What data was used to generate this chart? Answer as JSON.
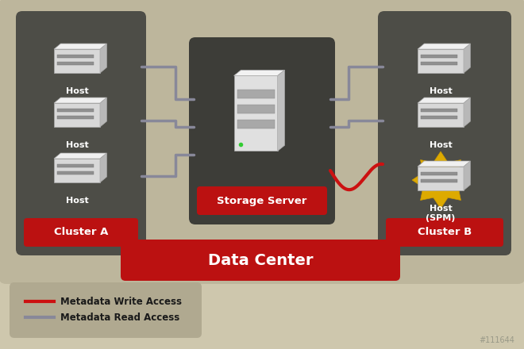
{
  "bg_color": "#cec7ad",
  "dc_area_color": "#bdb69c",
  "cluster_bg": "#4d4d47",
  "storage_bg": "#3d3d38",
  "label_red": "#bb1111",
  "read_color": "#888899",
  "write_color": "#cc1111",
  "legend_bg": "#b0a990",
  "outer_bg": "#d0c9af",
  "title": "Data Center",
  "cluster_a_label": "Cluster A",
  "cluster_b_label": "Cluster B",
  "storage_label": "Storage Server",
  "legend_write": "Metadata Write Access",
  "legend_read": "Metadata Read Access",
  "watermark": "#111644",
  "host_top": "#f0f0f0",
  "host_face": "#d8d8d8",
  "host_side": "#b8b8b8",
  "host_dark": "#909090"
}
